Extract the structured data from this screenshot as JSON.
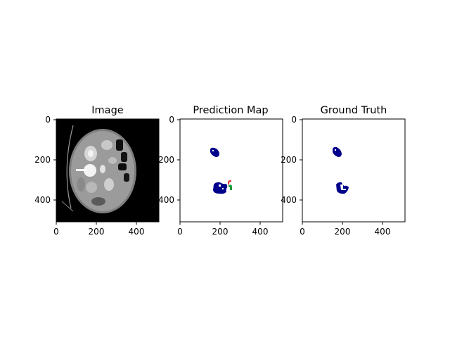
{
  "figure": {
    "panels": [
      {
        "title": "Image",
        "xticks": [
          "0",
          "200",
          "400"
        ],
        "yticks": [
          "0",
          "200",
          "400"
        ],
        "content": "ct-scan-slice"
      },
      {
        "title": "Prediction Map",
        "xticks": [
          "0",
          "200",
          "400"
        ],
        "yticks": [
          "0",
          "200",
          "400"
        ],
        "content": "segmentation-mask",
        "class_colors": {
          "class1": "#00008b",
          "class2": "#e03a3a",
          "class3": "#1f9e3a"
        }
      },
      {
        "title": "Ground Truth",
        "xticks": [
          "0",
          "200",
          "400"
        ],
        "yticks": [
          "0",
          "200",
          "400"
        ],
        "content": "segmentation-mask",
        "class_colors": {
          "class1": "#00008b"
        }
      }
    ]
  }
}
